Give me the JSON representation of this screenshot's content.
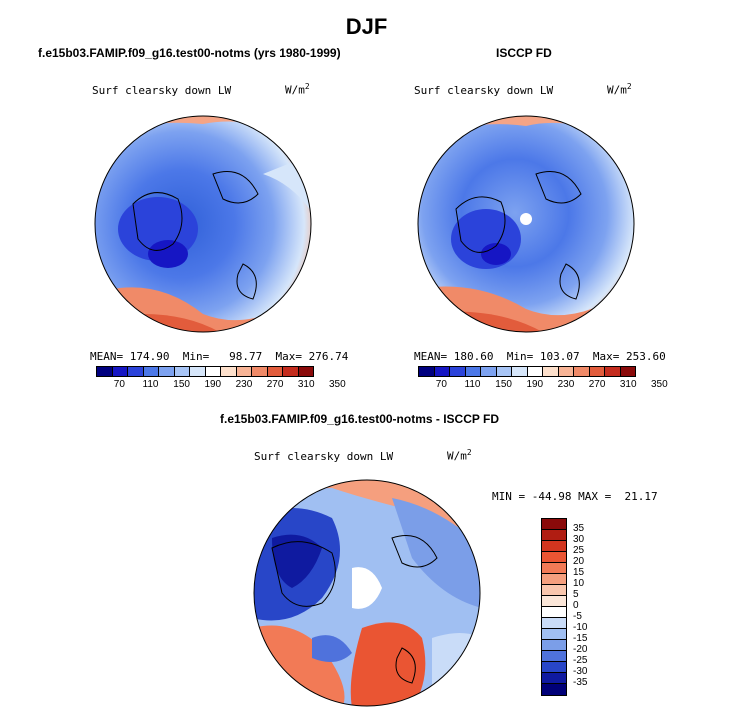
{
  "title": "DJF",
  "units_main": "W/m",
  "units_exp": "2",
  "panels": [
    {
      "case": "f.e15b03.FAMIP.f09_g16.test00-notms (yrs 1980-1999)",
      "variable": "Surf clearsky down LW",
      "mean_label": "MEAN=",
      "mean": "174.90",
      "min_label": "Min=",
      "min": "98.77",
      "max_label": "Max=",
      "max": "276.74"
    },
    {
      "case": "ISCCP FD",
      "variable": "Surf clearsky down LW",
      "mean_label": "MEAN=",
      "mean": "180.60",
      "min_label": "Min=",
      "min": "103.07",
      "max_label": "Max=",
      "max": "253.60"
    }
  ],
  "diff_panel": {
    "case": "f.e15b03.FAMIP.f09_g16.test00-notms - ISCCP FD",
    "variable": "Surf clearsky down LW",
    "min_label": "MIN =",
    "min": "-44.98",
    "max_label": "MAX =",
    "max": "21.17"
  },
  "chart_data": [
    {
      "type": "heatmap",
      "projection": "north-polar-stereographic",
      "title": "f.e15b03.FAMIP.f09_g16.test00-notms (yrs 1980-1999)",
      "variable": "Surf clearsky down LW",
      "units": "W/m^2",
      "mean": 174.9,
      "min": 98.77,
      "max": 276.74,
      "colorbar_ticks": [
        "70",
        "110",
        "150",
        "190",
        "230",
        "270",
        "310",
        "350"
      ],
      "colorbar_colors": [
        "#00007f",
        "#1616c4",
        "#2b43da",
        "#4c78e8",
        "#7da2f0",
        "#a8c5f6",
        "#d6e6fa",
        "#ffffff",
        "#fde0cc",
        "#f8b496",
        "#f08a68",
        "#e25c3c",
        "#c42c1e",
        "#8a0a0a"
      ]
    },
    {
      "type": "heatmap",
      "projection": "north-polar-stereographic",
      "title": "ISCCP FD",
      "variable": "Surf clearsky down LW",
      "units": "W/m^2",
      "mean": 180.6,
      "min": 103.07,
      "max": 253.6,
      "colorbar_ticks": [
        "70",
        "110",
        "150",
        "190",
        "230",
        "270",
        "310",
        "350"
      ],
      "colorbar_colors": [
        "#00007f",
        "#1616c4",
        "#2b43da",
        "#4c78e8",
        "#7da2f0",
        "#a8c5f6",
        "#d6e6fa",
        "#ffffff",
        "#fde0cc",
        "#f8b496",
        "#f08a68",
        "#e25c3c",
        "#c42c1e",
        "#8a0a0a"
      ]
    },
    {
      "type": "heatmap",
      "projection": "north-polar-stereographic",
      "title": "f.e15b03.FAMIP.f09_g16.test00-notms - ISCCP FD",
      "variable": "Surf clearsky down LW",
      "units": "W/m^2",
      "min": -44.98,
      "max": 21.17,
      "colorbar_ticks": [
        "35",
        "30",
        "25",
        "20",
        "15",
        "10",
        "5",
        "0",
        "-5",
        "-10",
        "-15",
        "-20",
        "-25",
        "-30",
        "-35"
      ],
      "colorbar_colors": [
        "#8a0a0a",
        "#b01d12",
        "#d2351f",
        "#ea5533",
        "#f27a56",
        "#f59f7e",
        "#f9c6ad",
        "#fbe6d8",
        "#ffffff",
        "#c9dcf8",
        "#a0bff2",
        "#7b9ee8",
        "#4f72dc",
        "#2846c8",
        "#0f1aa0",
        "#000078"
      ]
    }
  ]
}
